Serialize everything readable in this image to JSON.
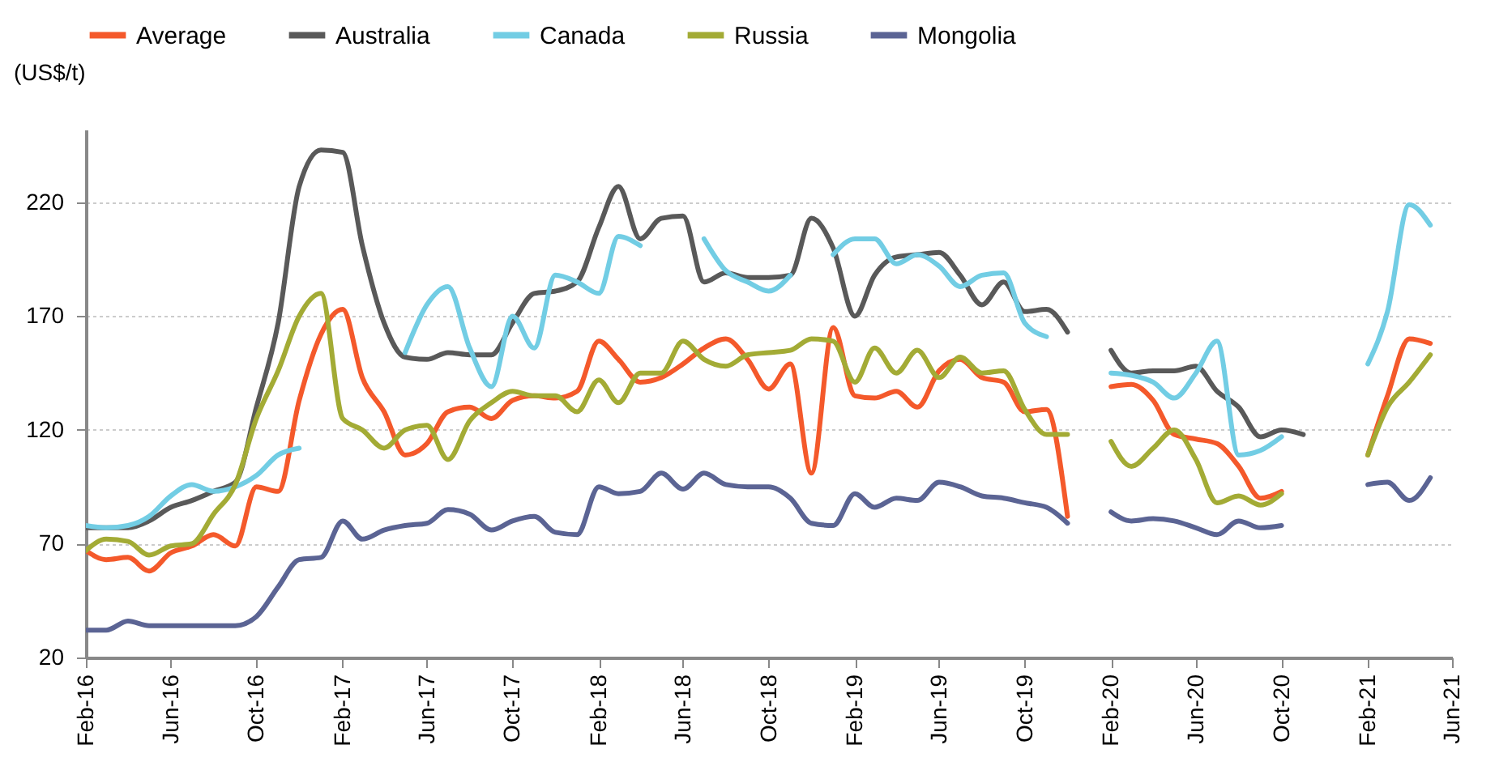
{
  "chart_data": {
    "type": "line",
    "ylabel": "(US$/t)",
    "legend": "top",
    "grid": "y",
    "line_style": "solid",
    "marker": "none",
    "x": [
      "2016-02",
      "2016-03",
      "2016-04",
      "2016-05",
      "2016-06",
      "2016-07",
      "2016-08",
      "2016-09",
      "2016-10",
      "2016-11",
      "2016-12",
      "2017-01",
      "2017-02",
      "2017-03",
      "2017-04",
      "2017-05",
      "2017-06",
      "2017-07",
      "2017-08",
      "2017-09",
      "2017-10",
      "2017-11",
      "2017-12",
      "2018-01",
      "2018-02",
      "2018-03",
      "2018-04",
      "2018-05",
      "2018-06",
      "2018-07",
      "2018-08",
      "2018-09",
      "2018-10",
      "2018-11",
      "2018-12",
      "2019-01",
      "2019-02",
      "2019-03",
      "2019-04",
      "2019-05",
      "2019-06",
      "2019-07",
      "2019-08",
      "2019-09",
      "2019-10",
      "2019-11",
      "2019-12",
      "2020-01",
      "2020-02",
      "2020-03",
      "2020-04",
      "2020-05",
      "2020-06",
      "2020-07",
      "2020-08",
      "2020-09",
      "2020-10",
      "2020-11",
      "2020-12",
      "2021-01",
      "2021-02",
      "2021-03",
      "2021-04",
      "2021-05"
    ],
    "xlim": [
      "2016-02",
      "2021-06"
    ],
    "xticks": [
      {
        "value": "2016-02",
        "label": "Feb-16"
      },
      {
        "value": "2016-06",
        "label": "Jun-16"
      },
      {
        "value": "2016-10",
        "label": "Oct-16"
      },
      {
        "value": "2017-02",
        "label": "Feb-17"
      },
      {
        "value": "2017-06",
        "label": "Jun-17"
      },
      {
        "value": "2017-10",
        "label": "Oct-17"
      },
      {
        "value": "2018-02",
        "label": "Feb-18"
      },
      {
        "value": "2018-06",
        "label": "Jun-18"
      },
      {
        "value": "2018-10",
        "label": "Oct-18"
      },
      {
        "value": "2019-02",
        "label": "Feb-19"
      },
      {
        "value": "2019-06",
        "label": "Jun-19"
      },
      {
        "value": "2019-10",
        "label": "Oct-19"
      },
      {
        "value": "2020-02",
        "label": "Feb-20"
      },
      {
        "value": "2020-06",
        "label": "Jun-20"
      },
      {
        "value": "2020-10",
        "label": "Oct-20"
      },
      {
        "value": "2021-02",
        "label": "Feb-21"
      },
      {
        "value": "2021-06",
        "label": "Jun-21"
      }
    ],
    "ylim": [
      20,
      252
    ],
    "yticks": [
      20,
      70,
      120,
      170,
      220
    ],
    "series": [
      {
        "name": "Average",
        "color": "#f4592b",
        "values": [
          67,
          63,
          64,
          58,
          66,
          69,
          74,
          69,
          95,
          93,
          133,
          162,
          173,
          143,
          128,
          109,
          114,
          128,
          130,
          125,
          133,
          135,
          134,
          137,
          159,
          151,
          141,
          143,
          149,
          156,
          160,
          151,
          138,
          149,
          101,
          165,
          135,
          134,
          137,
          130,
          146,
          151,
          143,
          141,
          128,
          129,
          82,
          null,
          139,
          140,
          133,
          118,
          116,
          114,
          104,
          90,
          93,
          null,
          null,
          null,
          109,
          135,
          160,
          158
        ]
      },
      {
        "name": "Australia",
        "color": "#595959",
        "values": [
          77,
          77,
          77,
          80,
          86,
          89,
          93,
          97,
          130,
          167,
          227,
          243,
          242,
          201,
          167,
          152,
          151,
          154,
          153,
          153,
          167,
          180,
          181,
          185,
          209,
          227,
          204,
          213,
          214,
          185,
          189,
          187,
          187,
          188,
          213,
          200,
          170,
          188,
          196,
          197,
          198,
          188,
          175,
          185,
          172,
          173,
          163,
          null,
          155,
          145,
          146,
          146,
          148,
          137,
          130,
          117,
          120,
          118,
          null,
          null,
          null,
          null,
          null,
          null
        ]
      },
      {
        "name": "Canada",
        "color": "#72cde4",
        "values": [
          78,
          77,
          78,
          82,
          91,
          96,
          93,
          95,
          100,
          109,
          112,
          null,
          null,
          null,
          null,
          154,
          175,
          183,
          156,
          139,
          170,
          156,
          188,
          185,
          180,
          205,
          201,
          null,
          null,
          204,
          190,
          185,
          181,
          188,
          null,
          197,
          204,
          204,
          193,
          197,
          192,
          183,
          188,
          189,
          167,
          161,
          null,
          null,
          145,
          144,
          141,
          134,
          145,
          159,
          109,
          111,
          117,
          null,
          null,
          null,
          149,
          172,
          219,
          210
        ]
      },
      {
        "name": "Russia",
        "color": "#a3ab35",
        "values": [
          67,
          72,
          71,
          65,
          69,
          70,
          83,
          96,
          125,
          146,
          170,
          180,
          125,
          120,
          112,
          120,
          122,
          107,
          124,
          132,
          137,
          135,
          135,
          128,
          142,
          132,
          145,
          145,
          159,
          151,
          148,
          153,
          154,
          155,
          160,
          159,
          141,
          156,
          145,
          155,
          143,
          152,
          145,
          146,
          129,
          118,
          118,
          null,
          115,
          104,
          112,
          120,
          107,
          88,
          91,
          87,
          92,
          null,
          null,
          null,
          109,
          130,
          141,
          153
        ]
      },
      {
        "name": "Mongolia",
        "color": "#5b6494",
        "values": [
          32,
          32,
          36,
          34,
          34,
          34,
          34,
          34,
          38,
          51,
          63,
          64,
          80,
          72,
          76,
          78,
          79,
          85,
          83,
          76,
          80,
          82,
          75,
          74,
          95,
          92,
          93,
          101,
          94,
          101,
          96,
          95,
          95,
          90,
          79,
          78,
          92,
          86,
          90,
          89,
          97,
          95,
          91,
          90,
          88,
          86,
          79,
          null,
          84,
          80,
          81,
          80,
          77,
          74,
          80,
          77,
          78,
          null,
          null,
          null,
          96,
          97,
          89,
          99
        ]
      }
    ]
  }
}
